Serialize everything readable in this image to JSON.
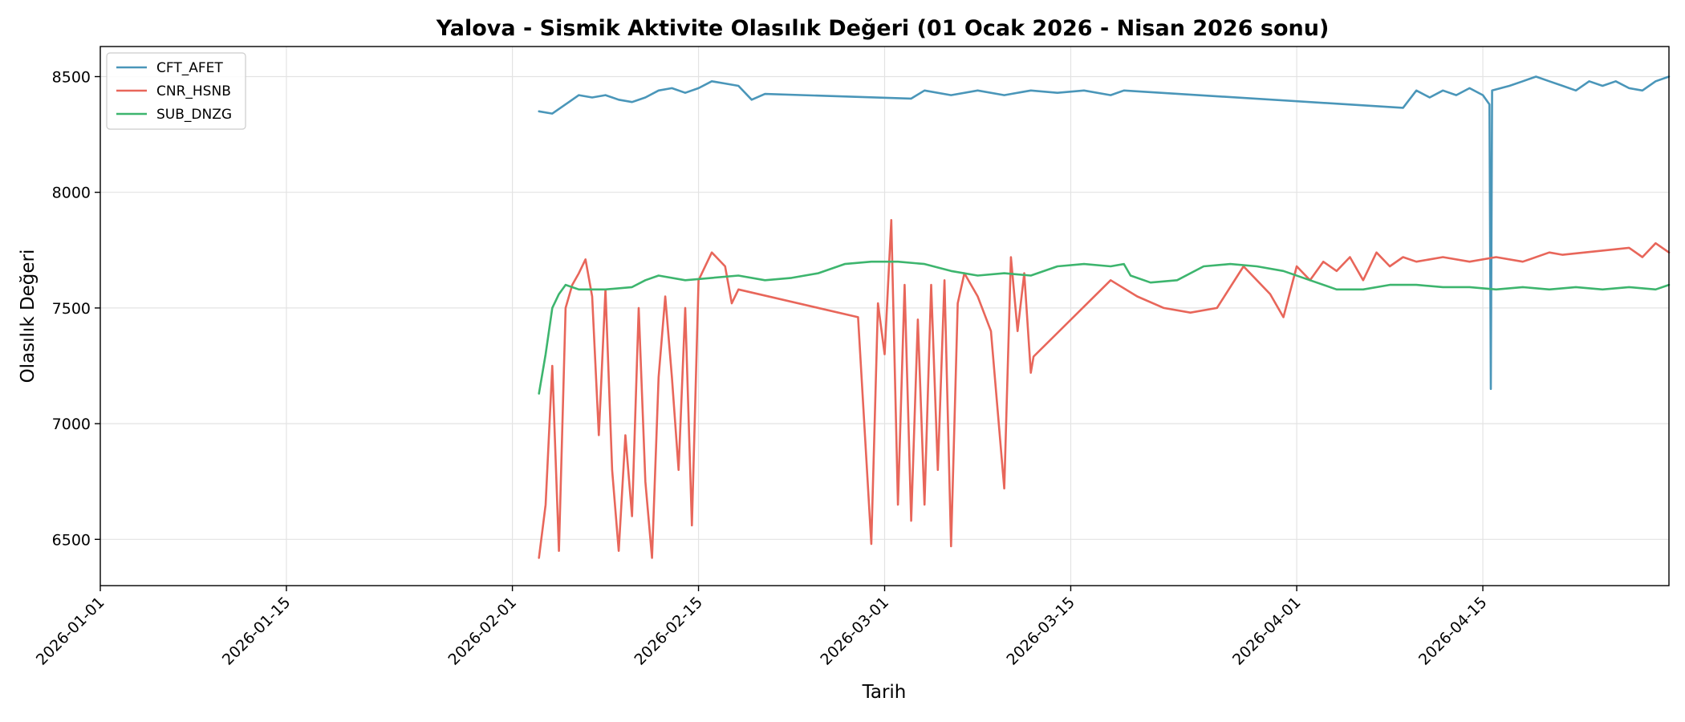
{
  "chart_data": {
    "type": "line",
    "title": "Yalova - Sismik Aktivite Olasılık Değeri (01 Ocak 2026 - Nisan 2026 sonu)",
    "xlabel": "Tarih",
    "ylabel": "Olasılık Değeri",
    "xlim": [
      "2026-01-01",
      "2026-04-29"
    ],
    "ylim": [
      6300,
      8630
    ],
    "x_ticks": [
      "2026-01-01",
      "2026-01-15",
      "2026-02-01",
      "2026-02-15",
      "2026-03-01",
      "2026-03-15",
      "2026-04-01",
      "2026-04-15"
    ],
    "y_ticks": [
      6500,
      7000,
      7500,
      8000,
      8500
    ],
    "grid": true,
    "legend_position": "top-left",
    "series": [
      {
        "name": "CFT_AFET",
        "color": "#4a96b9",
        "points": [
          [
            "2026-02-03",
            8350
          ],
          [
            "2026-02-04",
            8340
          ],
          [
            "2026-02-05",
            8380
          ],
          [
            "2026-02-06",
            8420
          ],
          [
            "2026-02-07",
            8410
          ],
          [
            "2026-02-08",
            8420
          ],
          [
            "2026-02-09",
            8400
          ],
          [
            "2026-02-10",
            8390
          ],
          [
            "2026-02-11",
            8410
          ],
          [
            "2026-02-12",
            8440
          ],
          [
            "2026-02-13",
            8450
          ],
          [
            "2026-02-14",
            8430
          ],
          [
            "2026-02-15",
            8450
          ],
          [
            "2026-02-16",
            8480
          ],
          [
            "2026-02-17",
            8470
          ],
          [
            "2026-02-18",
            8460
          ],
          [
            "2026-02-19",
            8400
          ],
          [
            "2026-02-20",
            8425
          ],
          [
            "2026-03-03",
            8405
          ],
          [
            "2026-03-04",
            8440
          ],
          [
            "2026-03-06",
            8420
          ],
          [
            "2026-03-08",
            8440
          ],
          [
            "2026-03-10",
            8420
          ],
          [
            "2026-03-12",
            8440
          ],
          [
            "2026-03-14",
            8430
          ],
          [
            "2026-03-16",
            8440
          ],
          [
            "2026-03-18",
            8420
          ],
          [
            "2026-03-19",
            8440
          ],
          [
            "2026-04-09",
            8365
          ],
          [
            "2026-04-10",
            8440
          ],
          [
            "2026-04-11",
            8410
          ],
          [
            "2026-04-12",
            8440
          ],
          [
            "2026-04-13",
            8420
          ],
          [
            "2026-04-14",
            8450
          ],
          [
            "2026-04-15",
            8420
          ],
          [
            "2026-04-15.5",
            8380
          ],
          [
            "2026-04-15.6",
            7150
          ],
          [
            "2026-04-15.7",
            8440
          ],
          [
            "2026-04-17",
            8460
          ],
          [
            "2026-04-18",
            8480
          ],
          [
            "2026-04-19",
            8500
          ],
          [
            "2026-04-20",
            8480
          ],
          [
            "2026-04-21",
            8460
          ],
          [
            "2026-04-22",
            8440
          ],
          [
            "2026-04-23",
            8480
          ],
          [
            "2026-04-24",
            8460
          ],
          [
            "2026-04-25",
            8480
          ],
          [
            "2026-04-26",
            8450
          ],
          [
            "2026-04-27",
            8440
          ],
          [
            "2026-04-28",
            8480
          ],
          [
            "2026-04-29",
            8500
          ]
        ]
      },
      {
        "name": "CNR_HSNB",
        "color": "#e8665a",
        "points": [
          [
            "2026-02-03",
            6420
          ],
          [
            "2026-02-03.5",
            6650
          ],
          [
            "2026-02-04",
            7250
          ],
          [
            "2026-02-04.5",
            6450
          ],
          [
            "2026-02-05",
            7500
          ],
          [
            "2026-02-05.5",
            7600
          ],
          [
            "2026-02-06",
            7650
          ],
          [
            "2026-02-06.5",
            7710
          ],
          [
            "2026-02-07",
            7550
          ],
          [
            "2026-02-07.5",
            6950
          ],
          [
            "2026-02-08",
            7580
          ],
          [
            "2026-02-08.5",
            6800
          ],
          [
            "2026-02-09",
            6450
          ],
          [
            "2026-02-09.5",
            6950
          ],
          [
            "2026-02-10",
            6600
          ],
          [
            "2026-02-10.5",
            7500
          ],
          [
            "2026-02-11",
            6750
          ],
          [
            "2026-02-11.5",
            6420
          ],
          [
            "2026-02-12",
            7200
          ],
          [
            "2026-02-12.5",
            7550
          ],
          [
            "2026-02-13",
            7200
          ],
          [
            "2026-02-13.5",
            6800
          ],
          [
            "2026-02-14",
            7500
          ],
          [
            "2026-02-14.5",
            6560
          ],
          [
            "2026-02-15",
            7620
          ],
          [
            "2026-02-16",
            7740
          ],
          [
            "2026-02-17",
            7680
          ],
          [
            "2026-02-17.5",
            7520
          ],
          [
            "2026-02-18",
            7580
          ],
          [
            "2026-02-27",
            7460
          ],
          [
            "2026-02-28",
            6480
          ],
          [
            "2026-02-28.5",
            7520
          ],
          [
            "2026-03-01",
            7300
          ],
          [
            "2026-03-01.5",
            7880
          ],
          [
            "2026-03-02",
            6650
          ],
          [
            "2026-03-02.5",
            7600
          ],
          [
            "2026-03-03",
            6580
          ],
          [
            "2026-03-03.5",
            7450
          ],
          [
            "2026-03-04",
            6650
          ],
          [
            "2026-03-04.5",
            7600
          ],
          [
            "2026-03-05",
            6800
          ],
          [
            "2026-03-05.5",
            7620
          ],
          [
            "2026-03-06",
            6470
          ],
          [
            "2026-03-06.5",
            7520
          ],
          [
            "2026-03-07",
            7650
          ],
          [
            "2026-03-08",
            7550
          ],
          [
            "2026-03-09",
            7400
          ],
          [
            "2026-03-10",
            6720
          ],
          [
            "2026-03-10.5",
            7720
          ],
          [
            "2026-03-11",
            7400
          ],
          [
            "2026-03-11.5",
            7650
          ],
          [
            "2026-03-12",
            7220
          ],
          [
            "2026-03-12.2",
            7290
          ],
          [
            "2026-03-18",
            7620
          ],
          [
            "2026-03-20",
            7550
          ],
          [
            "2026-03-22",
            7500
          ],
          [
            "2026-03-24",
            7480
          ],
          [
            "2026-03-26",
            7500
          ],
          [
            "2026-03-28",
            7680
          ],
          [
            "2026-03-29",
            7620
          ],
          [
            "2026-03-30",
            7560
          ],
          [
            "2026-03-31",
            7460
          ],
          [
            "2026-04-01",
            7680
          ],
          [
            "2026-04-02",
            7620
          ],
          [
            "2026-04-03",
            7700
          ],
          [
            "2026-04-04",
            7660
          ],
          [
            "2026-04-05",
            7720
          ],
          [
            "2026-04-06",
            7620
          ],
          [
            "2026-04-07",
            7740
          ],
          [
            "2026-04-08",
            7680
          ],
          [
            "2026-04-09",
            7720
          ],
          [
            "2026-04-10",
            7700
          ],
          [
            "2026-04-12",
            7720
          ],
          [
            "2026-04-14",
            7700
          ],
          [
            "2026-04-16",
            7720
          ],
          [
            "2026-04-18",
            7700
          ],
          [
            "2026-04-20",
            7740
          ],
          [
            "2026-04-21",
            7730
          ],
          [
            "2026-04-26",
            7760
          ],
          [
            "2026-04-27",
            7720
          ],
          [
            "2026-04-28",
            7780
          ],
          [
            "2026-04-29",
            7740
          ]
        ]
      },
      {
        "name": "SUB_DNZG",
        "color": "#3db56e",
        "points": [
          [
            "2026-02-03",
            7130
          ],
          [
            "2026-02-03.5",
            7300
          ],
          [
            "2026-02-04",
            7500
          ],
          [
            "2026-02-04.5",
            7560
          ],
          [
            "2026-02-05",
            7600
          ],
          [
            "2026-02-06",
            7580
          ],
          [
            "2026-02-08",
            7580
          ],
          [
            "2026-02-10",
            7590
          ],
          [
            "2026-02-11",
            7620
          ],
          [
            "2026-02-12",
            7640
          ],
          [
            "2026-02-14",
            7620
          ],
          [
            "2026-02-16",
            7630
          ],
          [
            "2026-02-18",
            7640
          ],
          [
            "2026-02-20",
            7620
          ],
          [
            "2026-02-22",
            7630
          ],
          [
            "2026-02-24",
            7650
          ],
          [
            "2026-02-26",
            7690
          ],
          [
            "2026-02-28",
            7700
          ],
          [
            "2026-03-02",
            7700
          ],
          [
            "2026-03-04",
            7690
          ],
          [
            "2026-03-06",
            7660
          ],
          [
            "2026-03-08",
            7640
          ],
          [
            "2026-03-10",
            7650
          ],
          [
            "2026-03-12",
            7640
          ],
          [
            "2026-03-14",
            7680
          ],
          [
            "2026-03-16",
            7690
          ],
          [
            "2026-03-18",
            7680
          ],
          [
            "2026-03-19",
            7690
          ],
          [
            "2026-03-19.5",
            7640
          ],
          [
            "2026-03-21",
            7610
          ],
          [
            "2026-03-23",
            7620
          ],
          [
            "2026-03-25",
            7680
          ],
          [
            "2026-03-27",
            7690
          ],
          [
            "2026-03-29",
            7680
          ],
          [
            "2026-03-31",
            7660
          ],
          [
            "2026-04-02",
            7620
          ],
          [
            "2026-04-04",
            7580
          ],
          [
            "2026-04-06",
            7580
          ],
          [
            "2026-04-08",
            7600
          ],
          [
            "2026-04-10",
            7600
          ],
          [
            "2026-04-12",
            7590
          ],
          [
            "2026-04-14",
            7590
          ],
          [
            "2026-04-16",
            7580
          ],
          [
            "2026-04-18",
            7590
          ],
          [
            "2026-04-20",
            7580
          ],
          [
            "2026-04-22",
            7590
          ],
          [
            "2026-04-24",
            7580
          ],
          [
            "2026-04-26",
            7590
          ],
          [
            "2026-04-28",
            7580
          ],
          [
            "2026-04-29",
            7600
          ]
        ]
      }
    ]
  }
}
